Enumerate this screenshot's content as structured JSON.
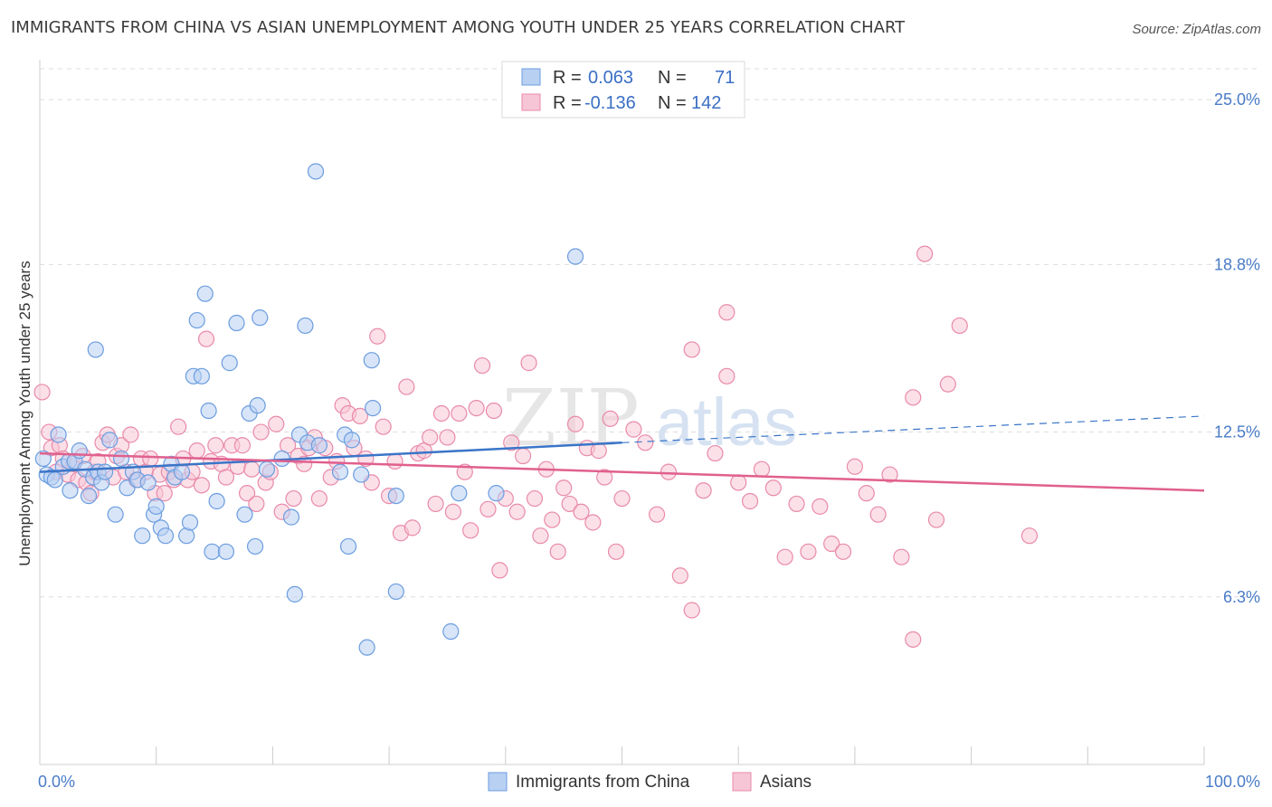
{
  "title": "IMMIGRANTS FROM CHINA VS ASIAN UNEMPLOYMENT AMONG YOUTH UNDER 25 YEARS CORRELATION CHART",
  "source": "Source: ZipAtlas.com",
  "watermark": {
    "zip": "ZIP",
    "atlas": "atlas"
  },
  "legend": {
    "rows": [
      {
        "r_label": "R =",
        "r_value": "0.063",
        "n_label": "N =",
        "n_value": "71"
      },
      {
        "r_label": "R =",
        "r_value": "-0.136",
        "n_label": "N =",
        "n_value": "142"
      }
    ]
  },
  "bottom_legend": [
    "Immigrants from China",
    "Asians"
  ],
  "colors": {
    "blue_fill": "#b8d0f2",
    "blue_stroke": "#6b9de0",
    "blue_line": "#3a75c8",
    "pink_fill": "#f7c6d6",
    "pink_stroke": "#e98aaa",
    "pink_line": "#e0608e"
  },
  "chart_data": {
    "type": "scatter",
    "title": "IMMIGRANTS FROM CHINA VS ASIAN UNEMPLOYMENT AMONG YOUTH UNDER 25 YEARS CORRELATION CHART",
    "xlabel": "",
    "ylabel": "Unemployment Among Youth under 25 years",
    "xlim": [
      0,
      100
    ],
    "ylim": [
      0,
      26.5
    ],
    "x_tick_labels": [
      {
        "value": 0,
        "label": "0.0%"
      },
      {
        "value": 100,
        "label": "100.0%"
      }
    ],
    "y_ticks": [
      {
        "value": 6.3,
        "label": "6.3%"
      },
      {
        "value": 12.5,
        "label": "12.5%"
      },
      {
        "value": 18.8,
        "label": "18.8%"
      },
      {
        "value": 25.0,
        "label": "25.0%"
      }
    ],
    "grid": "horizontal dashed",
    "legend_position": "top-center",
    "series": [
      {
        "name": "Immigrants from China",
        "color": "#6b9de0",
        "trend": {
          "x": [
            0,
            50
          ],
          "y": [
            11.0,
            12.1
          ],
          "dashed_to": [
            100,
            13.1
          ]
        },
        "points": [
          [
            0.3,
            11.5
          ],
          [
            0.6,
            10.9
          ],
          [
            1.0,
            10.8
          ],
          [
            1.3,
            10.7
          ],
          [
            1.6,
            12.4
          ],
          [
            2.0,
            11.2
          ],
          [
            2.5,
            11.4
          ],
          [
            2.6,
            10.3
          ],
          [
            3.0,
            11.4
          ],
          [
            3.4,
            11.8
          ],
          [
            3.9,
            11.1
          ],
          [
            4.2,
            10.1
          ],
          [
            4.6,
            10.8
          ],
          [
            4.8,
            15.6
          ],
          [
            5.0,
            11.0
          ],
          [
            5.3,
            10.6
          ],
          [
            5.6,
            11.0
          ],
          [
            6.0,
            12.2
          ],
          [
            6.5,
            9.4
          ],
          [
            7.0,
            11.5
          ],
          [
            7.5,
            10.4
          ],
          [
            8.0,
            11.0
          ],
          [
            8.4,
            10.7
          ],
          [
            8.8,
            8.6
          ],
          [
            9.3,
            10.6
          ],
          [
            9.8,
            9.4
          ],
          [
            10.0,
            9.7
          ],
          [
            10.4,
            8.9
          ],
          [
            10.8,
            8.6
          ],
          [
            11.3,
            11.3
          ],
          [
            11.6,
            10.8
          ],
          [
            12.2,
            11.0
          ],
          [
            12.6,
            8.6
          ],
          [
            12.9,
            9.1
          ],
          [
            13.2,
            14.6
          ],
          [
            13.5,
            16.7
          ],
          [
            13.9,
            14.6
          ],
          [
            14.2,
            17.7
          ],
          [
            14.5,
            13.3
          ],
          [
            14.8,
            8.0
          ],
          [
            15.2,
            9.9
          ],
          [
            16.0,
            8.0
          ],
          [
            16.3,
            15.1
          ],
          [
            16.9,
            16.6
          ],
          [
            17.6,
            9.4
          ],
          [
            18.0,
            13.2
          ],
          [
            18.5,
            8.2
          ],
          [
            18.7,
            13.5
          ],
          [
            18.9,
            16.8
          ],
          [
            19.5,
            11.1
          ],
          [
            20.8,
            11.5
          ],
          [
            21.6,
            9.3
          ],
          [
            21.9,
            6.4
          ],
          [
            22.3,
            12.4
          ],
          [
            22.8,
            16.5
          ],
          [
            23.0,
            12.1
          ],
          [
            23.7,
            22.3
          ],
          [
            24.0,
            12.0
          ],
          [
            25.8,
            11.0
          ],
          [
            26.2,
            12.4
          ],
          [
            26.5,
            8.2
          ],
          [
            26.8,
            12.2
          ],
          [
            27.6,
            10.9
          ],
          [
            28.1,
            4.4
          ],
          [
            28.5,
            15.2
          ],
          [
            28.6,
            13.4
          ],
          [
            30.6,
            10.1
          ],
          [
            30.6,
            6.5
          ],
          [
            35.3,
            5.0
          ],
          [
            36.0,
            10.2
          ],
          [
            39.2,
            10.2
          ],
          [
            46.0,
            19.1
          ]
        ]
      },
      {
        "name": "Asians",
        "color": "#e98aaa",
        "trend": {
          "x": [
            0,
            100
          ],
          "y": [
            11.7,
            10.3
          ]
        },
        "points": [
          [
            0.2,
            14.0
          ],
          [
            0.8,
            12.5
          ],
          [
            1.0,
            11.9
          ],
          [
            1.4,
            11.0
          ],
          [
            1.7,
            12.0
          ],
          [
            2.0,
            11.5
          ],
          [
            2.4,
            10.9
          ],
          [
            2.9,
            11.3
          ],
          [
            3.3,
            10.7
          ],
          [
            3.7,
            11.6
          ],
          [
            4.0,
            10.6
          ],
          [
            4.4,
            10.2
          ],
          [
            4.7,
            11.0
          ],
          [
            5.0,
            11.4
          ],
          [
            5.4,
            12.1
          ],
          [
            5.8,
            12.4
          ],
          [
            6.3,
            10.8
          ],
          [
            6.6,
            11.6
          ],
          [
            7.0,
            12.0
          ],
          [
            7.4,
            11.0
          ],
          [
            7.8,
            12.4
          ],
          [
            8.3,
            10.7
          ],
          [
            8.7,
            11.5
          ],
          [
            9.1,
            11.0
          ],
          [
            9.5,
            11.5
          ],
          [
            9.9,
            10.2
          ],
          [
            10.3,
            10.9
          ],
          [
            10.7,
            10.2
          ],
          [
            11.1,
            11.0
          ],
          [
            11.5,
            10.7
          ],
          [
            11.9,
            12.7
          ],
          [
            12.3,
            11.5
          ],
          [
            12.7,
            10.7
          ],
          [
            13.1,
            11.0
          ],
          [
            13.5,
            11.8
          ],
          [
            13.9,
            10.5
          ],
          [
            14.3,
            16.0
          ],
          [
            14.7,
            11.4
          ],
          [
            15.1,
            12.0
          ],
          [
            15.6,
            11.3
          ],
          [
            16.0,
            10.8
          ],
          [
            16.5,
            12.0
          ],
          [
            17.0,
            11.2
          ],
          [
            17.4,
            12.0
          ],
          [
            17.8,
            10.2
          ],
          [
            18.2,
            11.1
          ],
          [
            18.6,
            9.8
          ],
          [
            19.0,
            12.5
          ],
          [
            19.4,
            10.6
          ],
          [
            19.8,
            11.0
          ],
          [
            20.3,
            12.8
          ],
          [
            20.8,
            9.5
          ],
          [
            21.3,
            12.0
          ],
          [
            21.8,
            10.0
          ],
          [
            22.2,
            11.6
          ],
          [
            22.7,
            11.3
          ],
          [
            23.1,
            11.9
          ],
          [
            23.6,
            12.3
          ],
          [
            24.0,
            10.0
          ],
          [
            24.5,
            11.9
          ],
          [
            25.0,
            10.8
          ],
          [
            25.5,
            11.4
          ],
          [
            26.0,
            13.5
          ],
          [
            26.5,
            13.2
          ],
          [
            27.0,
            11.9
          ],
          [
            27.5,
            13.1
          ],
          [
            28.0,
            11.5
          ],
          [
            28.5,
            10.6
          ],
          [
            29.0,
            16.1
          ],
          [
            29.5,
            12.7
          ],
          [
            30.0,
            10.1
          ],
          [
            30.5,
            11.4
          ],
          [
            31.0,
            8.7
          ],
          [
            31.5,
            14.2
          ],
          [
            32.0,
            8.9
          ],
          [
            32.5,
            11.7
          ],
          [
            33.0,
            11.8
          ],
          [
            33.5,
            12.3
          ],
          [
            34.0,
            9.8
          ],
          [
            34.5,
            13.2
          ],
          [
            35.0,
            12.3
          ],
          [
            35.5,
            9.5
          ],
          [
            36.0,
            13.2
          ],
          [
            36.5,
            11.0
          ],
          [
            37.0,
            8.8
          ],
          [
            37.5,
            13.4
          ],
          [
            38.0,
            15.0
          ],
          [
            38.5,
            9.6
          ],
          [
            39.0,
            13.3
          ],
          [
            39.5,
            7.3
          ],
          [
            40.0,
            10.0
          ],
          [
            40.5,
            12.1
          ],
          [
            41.0,
            9.5
          ],
          [
            41.5,
            11.6
          ],
          [
            42.0,
            15.1
          ],
          [
            42.5,
            10.0
          ],
          [
            43.0,
            8.6
          ],
          [
            43.5,
            11.1
          ],
          [
            44.0,
            9.2
          ],
          [
            44.5,
            8.0
          ],
          [
            45.0,
            10.4
          ],
          [
            45.5,
            9.8
          ],
          [
            46.0,
            12.8
          ],
          [
            46.5,
            9.5
          ],
          [
            47.0,
            11.9
          ],
          [
            47.5,
            9.1
          ],
          [
            48.0,
            11.8
          ],
          [
            48.5,
            10.8
          ],
          [
            49.0,
            13.0
          ],
          [
            49.5,
            8.0
          ],
          [
            50.0,
            10.0
          ],
          [
            51.0,
            12.6
          ],
          [
            52.0,
            12.1
          ],
          [
            53.0,
            9.4
          ],
          [
            54.0,
            11.0
          ],
          [
            55.0,
            7.1
          ],
          [
            56.0,
            15.6
          ],
          [
            57.0,
            10.3
          ],
          [
            58.0,
            11.7
          ],
          [
            59.0,
            14.6
          ],
          [
            60.0,
            10.6
          ],
          [
            61.0,
            9.9
          ],
          [
            62.0,
            11.1
          ],
          [
            63.0,
            10.4
          ],
          [
            64.0,
            7.8
          ],
          [
            65.0,
            9.8
          ],
          [
            66.0,
            8.0
          ],
          [
            67.0,
            9.7
          ],
          [
            68.0,
            8.3
          ],
          [
            69.0,
            8.0
          ],
          [
            70.0,
            11.2
          ],
          [
            71.0,
            10.2
          ],
          [
            72.0,
            9.4
          ],
          [
            73.0,
            10.9
          ],
          [
            74.0,
            7.8
          ],
          [
            75.0,
            13.8
          ],
          [
            76.0,
            19.2
          ],
          [
            77.0,
            9.2
          ],
          [
            78.0,
            14.3
          ],
          [
            79.0,
            16.5
          ],
          [
            85.0,
            8.6
          ],
          [
            75.0,
            4.7
          ],
          [
            59.0,
            17.0
          ],
          [
            56.0,
            5.8
          ]
        ]
      }
    ]
  }
}
